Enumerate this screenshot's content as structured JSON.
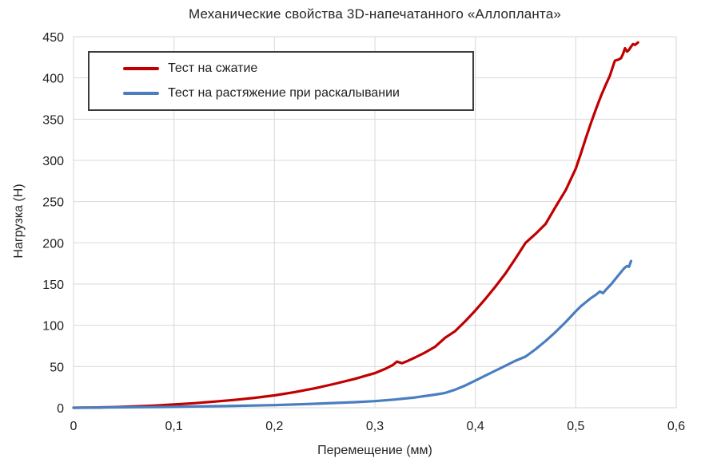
{
  "chart_data": {
    "type": "line",
    "title": "Механические свойства 3D-напечатанного «Аллопланта»",
    "xlabel": "Перемещение (мм)",
    "ylabel": "Нагрузка (Н)",
    "xlim": [
      0,
      0.6
    ],
    "ylim": [
      0,
      450
    ],
    "grid": true,
    "legend_position": "top-left",
    "x_tick_values": [
      0,
      0.1,
      0.2,
      0.3,
      0.4,
      0.5,
      0.6
    ],
    "x_tick_labels": [
      "0",
      "0,1",
      "0,2",
      "0,3",
      "0,4",
      "0,5",
      "0,6"
    ],
    "y_tick_values": [
      0,
      50,
      100,
      150,
      200,
      250,
      300,
      350,
      400,
      450
    ],
    "y_tick_labels": [
      "0",
      "50",
      "100",
      "150",
      "200",
      "250",
      "300",
      "350",
      "400",
      "450"
    ],
    "series": [
      {
        "name": "Тест на сжатие",
        "color": "#c00000",
        "points": [
          [
            0,
            0
          ],
          [
            0.02,
            0.3
          ],
          [
            0.04,
            0.8
          ],
          [
            0.06,
            1.5
          ],
          [
            0.08,
            2.5
          ],
          [
            0.1,
            4
          ],
          [
            0.12,
            5.5
          ],
          [
            0.14,
            7.5
          ],
          [
            0.16,
            9.5
          ],
          [
            0.18,
            12
          ],
          [
            0.2,
            15
          ],
          [
            0.22,
            19
          ],
          [
            0.24,
            23.5
          ],
          [
            0.26,
            29
          ],
          [
            0.28,
            35
          ],
          [
            0.3,
            42
          ],
          [
            0.31,
            47
          ],
          [
            0.318,
            52
          ],
          [
            0.322,
            56
          ],
          [
            0.327,
            54
          ],
          [
            0.333,
            57
          ],
          [
            0.34,
            61
          ],
          [
            0.35,
            67
          ],
          [
            0.36,
            74
          ],
          [
            0.37,
            85
          ],
          [
            0.38,
            93
          ],
          [
            0.39,
            105
          ],
          [
            0.4,
            118
          ],
          [
            0.41,
            132
          ],
          [
            0.42,
            147
          ],
          [
            0.43,
            163
          ],
          [
            0.44,
            181
          ],
          [
            0.45,
            200
          ],
          [
            0.46,
            211
          ],
          [
            0.47,
            223
          ],
          [
            0.48,
            244
          ],
          [
            0.49,
            264
          ],
          [
            0.5,
            290
          ],
          [
            0.505,
            308
          ],
          [
            0.51,
            327
          ],
          [
            0.515,
            345
          ],
          [
            0.52,
            362
          ],
          [
            0.525,
            378
          ],
          [
            0.53,
            392
          ],
          [
            0.534,
            403
          ],
          [
            0.537,
            414
          ],
          [
            0.539,
            421
          ],
          [
            0.542,
            422
          ],
          [
            0.545,
            424
          ],
          [
            0.547,
            429
          ],
          [
            0.549,
            436
          ],
          [
            0.551,
            432
          ],
          [
            0.553,
            434
          ],
          [
            0.555,
            438
          ],
          [
            0.557,
            441
          ],
          [
            0.559,
            440
          ],
          [
            0.561,
            442
          ],
          [
            0.562,
            443
          ]
        ]
      },
      {
        "name": "Тест на растяжение при раскалывании",
        "color": "#4a7ebf",
        "points": [
          [
            0,
            0
          ],
          [
            0.03,
            0.3
          ],
          [
            0.06,
            0.7
          ],
          [
            0.09,
            1
          ],
          [
            0.12,
            1.5
          ],
          [
            0.15,
            2
          ],
          [
            0.18,
            2.7
          ],
          [
            0.2,
            3.2
          ],
          [
            0.22,
            4
          ],
          [
            0.24,
            4.8
          ],
          [
            0.26,
            5.8
          ],
          [
            0.28,
            6.8
          ],
          [
            0.3,
            8
          ],
          [
            0.32,
            10
          ],
          [
            0.34,
            12.5
          ],
          [
            0.36,
            16
          ],
          [
            0.37,
            18
          ],
          [
            0.38,
            22
          ],
          [
            0.39,
            27
          ],
          [
            0.4,
            33
          ],
          [
            0.41,
            39
          ],
          [
            0.42,
            45
          ],
          [
            0.43,
            51
          ],
          [
            0.44,
            57
          ],
          [
            0.45,
            62
          ],
          [
            0.46,
            71
          ],
          [
            0.47,
            81
          ],
          [
            0.48,
            92
          ],
          [
            0.49,
            104
          ],
          [
            0.5,
            117
          ],
          [
            0.505,
            123
          ],
          [
            0.51,
            128
          ],
          [
            0.515,
            133
          ],
          [
            0.52,
            137
          ],
          [
            0.524,
            141
          ],
          [
            0.527,
            139
          ],
          [
            0.53,
            143
          ],
          [
            0.533,
            147
          ],
          [
            0.536,
            151
          ],
          [
            0.54,
            157
          ],
          [
            0.544,
            163
          ],
          [
            0.548,
            169
          ],
          [
            0.551,
            172
          ],
          [
            0.553,
            171
          ],
          [
            0.555,
            178
          ]
        ]
      }
    ]
  },
  "colors": {
    "grid": "#d9d9d9",
    "plot_border": "#d4d4d4",
    "tick_text": "#212121",
    "title_text": "#262626",
    "legend_border": "#3c3c3c",
    "background": "#ffffff"
  }
}
